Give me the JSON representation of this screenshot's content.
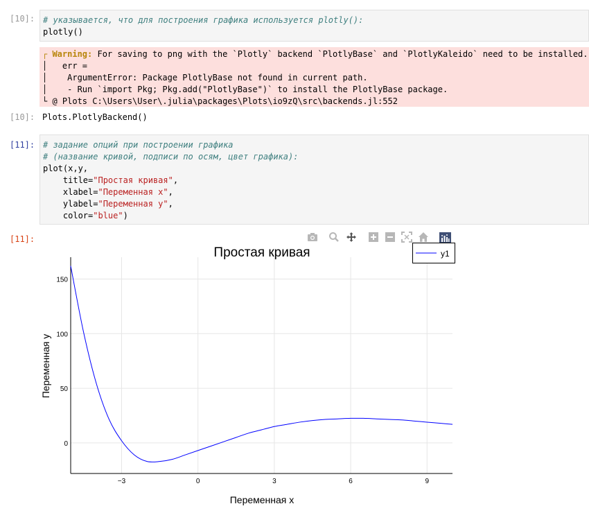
{
  "cells": [
    {
      "prompt": "[10]:",
      "lines": [
        {
          "comment": "# указывается, что для построения графика используется plotly():"
        },
        {
          "text": "plotly()"
        }
      ]
    },
    {
      "warning": {
        "line1_label": "┌ Warning:",
        "line1_text": " For saving to png with the `Plotly` backend `PlotlyBase` and `PlotlyKaleido` need to be installed.",
        "line2": "│   err =",
        "line3": "│    ArgumentError: Package PlotlyBase not found in current path.",
        "line4": "│    - Run `import Pkg; Pkg.add(\"PlotlyBase\")` to install the PlotlyBase package.",
        "line5": "└ @ Plots C:\\Users\\User\\.julia\\packages\\Plots\\io9zQ\\src\\backends.jl:552"
      }
    },
    {
      "prompt": "[10]:",
      "output": "Plots.PlotlyBackend()"
    },
    {
      "prompt": "[11]:",
      "comment1": "# задание опций при построении графика",
      "comment2": "# (название кривой, подписи по осям, цвет графика):",
      "code1": "plot(x,y,",
      "title_kw": "    title=",
      "title_val": "\"Простая кривая\"",
      "xlabel_kw": "    xlabel=",
      "xlabel_val": "\"Переменная x\"",
      "ylabel_kw": "    ylabel=",
      "ylabel_val": "\"Переменная y\"",
      "color_kw": "    color=",
      "color_val": "\"blue\"",
      "comma": ",",
      "close": ")"
    },
    {
      "prompt": "[11]:"
    }
  ],
  "toolbar": {
    "icons": [
      "camera-icon",
      "zoom-icon",
      "pan-icon",
      "zoom-in-icon",
      "zoom-out-icon",
      "autoscale-icon",
      "home-icon",
      "plotly-logo-icon"
    ]
  },
  "chart_data": {
    "type": "line",
    "title": "Простая кривая",
    "xlabel": "Переменная x",
    "ylabel": "Переменная y",
    "xlim": [
      -5,
      10
    ],
    "ylim": [
      -28,
      170
    ],
    "xticks": [
      -3,
      0,
      3,
      6,
      9
    ],
    "yticks": [
      0,
      50,
      100,
      150
    ],
    "grid": true,
    "legend_position": "top-right",
    "colors": {
      "series": "#0000ff"
    },
    "series": [
      {
        "name": "y1",
        "x": [
          -5,
          -4.5,
          -4,
          -3.5,
          -3,
          -2.5,
          -2,
          -1.5,
          -1,
          -0.5,
          0,
          0.5,
          1,
          1.5,
          2,
          2.5,
          3,
          3.5,
          4,
          4.5,
          5,
          5.5,
          6,
          6.5,
          7,
          7.5,
          8,
          8.5,
          9,
          9.5,
          10
        ],
        "y": [
          162,
          102,
          55,
          22,
          2,
          -11,
          -17,
          -17,
          -15,
          -11,
          -7,
          -3,
          1,
          5,
          9,
          12,
          15,
          17,
          19,
          20.5,
          21.5,
          22,
          22.5,
          22.5,
          22,
          21.5,
          21,
          20,
          19,
          18,
          17
        ]
      }
    ]
  }
}
